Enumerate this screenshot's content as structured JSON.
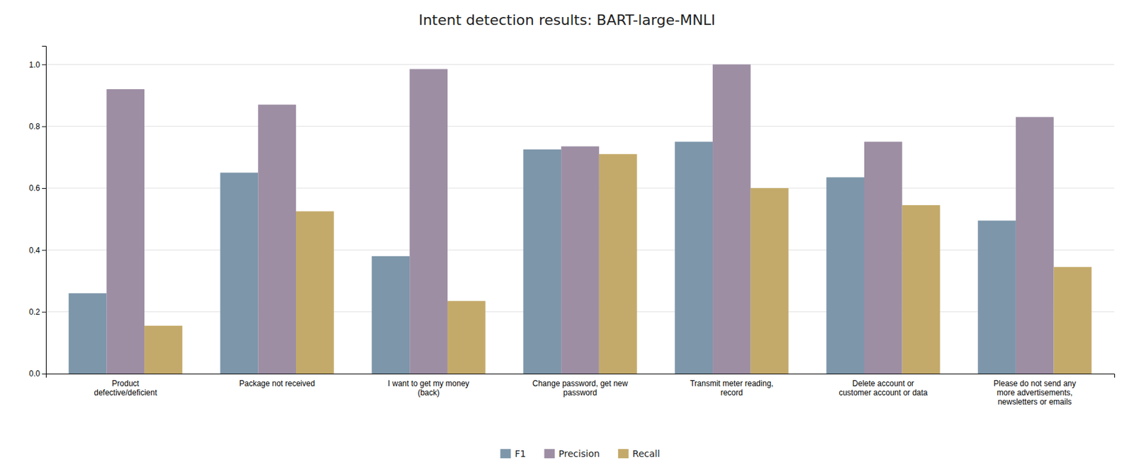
{
  "chart_data": {
    "type": "bar",
    "title": "Intent detection results: BART-large-MNLI",
    "categories": [
      "Product\ndefective/deficient",
      "Package not received",
      "I want to get my money\n(back)",
      "Change password, get new\npassword",
      "Transmit meter reading,\nrecord",
      "Delete account or\ncustomer account or data",
      "Please do not send any\nmore advertisements,\nnewsletters or emails"
    ],
    "series": [
      {
        "name": "F1",
        "color": "#7d96aa",
        "values": [
          0.26,
          0.65,
          0.38,
          0.725,
          0.75,
          0.635,
          0.495
        ]
      },
      {
        "name": "Precision",
        "color": "#9d8ea4",
        "values": [
          0.92,
          0.87,
          0.985,
          0.735,
          1.0,
          0.75,
          0.83
        ]
      },
      {
        "name": "Recall",
        "color": "#c4aa6a",
        "values": [
          0.155,
          0.525,
          0.235,
          0.71,
          0.6,
          0.545,
          0.345
        ]
      }
    ],
    "ylim": [
      0.0,
      1.06
    ],
    "yticks": [
      {
        "value": 0.0,
        "label": "0.0"
      },
      0.2,
      0.4,
      0.6,
      0.8,
      {
        "value": 1.0,
        "label": "1.0"
      }
    ],
    "grid": true,
    "legend": "bottom"
  }
}
